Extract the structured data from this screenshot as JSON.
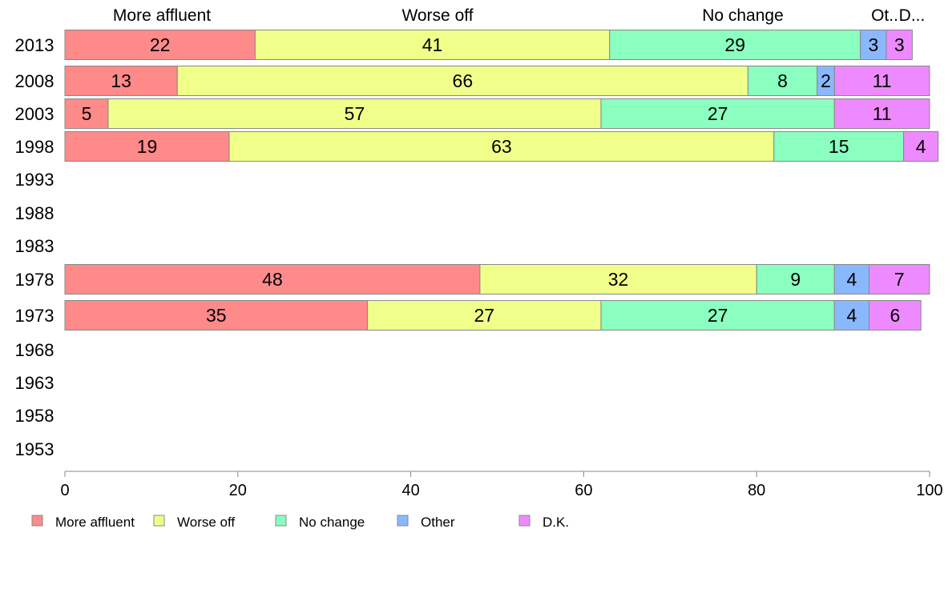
{
  "chart_data": {
    "type": "bar",
    "orientation": "horizontal",
    "stacked": true,
    "categories": [
      "2013",
      "2008",
      "2003",
      "1998",
      "1993",
      "1988",
      "1983",
      "1978",
      "1973",
      "1968",
      "1963",
      "1958",
      "1953"
    ],
    "series": [
      {
        "name": "More affluent",
        "color": "#ff8a8a",
        "values": [
          22,
          13,
          5,
          19,
          null,
          null,
          null,
          48,
          35,
          null,
          null,
          null,
          null
        ]
      },
      {
        "name": "Worse off",
        "color": "#f0ff8a",
        "values": [
          41,
          66,
          57,
          63,
          null,
          null,
          null,
          32,
          27,
          null,
          null,
          null,
          null
        ]
      },
      {
        "name": "No change",
        "color": "#8affbf",
        "values": [
          29,
          8,
          27,
          15,
          null,
          null,
          null,
          9,
          27,
          null,
          null,
          null,
          null
        ]
      },
      {
        "name": "Other",
        "color": "#8ab8ff",
        "values": [
          3,
          2,
          null,
          null,
          null,
          null,
          null,
          4,
          4,
          null,
          null,
          null,
          null
        ]
      },
      {
        "name": "D.K.",
        "color": "#ee8aff",
        "values": [
          3,
          11,
          11,
          4,
          null,
          null,
          null,
          7,
          6,
          null,
          null,
          null,
          null
        ]
      }
    ],
    "top_labels": [
      "More affluent",
      "Worse off",
      "No change",
      "Ot..",
      "D..."
    ],
    "xlim": [
      0,
      100
    ],
    "xticks": [
      "0",
      "20",
      "40",
      "60",
      "80",
      "100"
    ],
    "grid": false,
    "legend_position": "bottom-left"
  }
}
